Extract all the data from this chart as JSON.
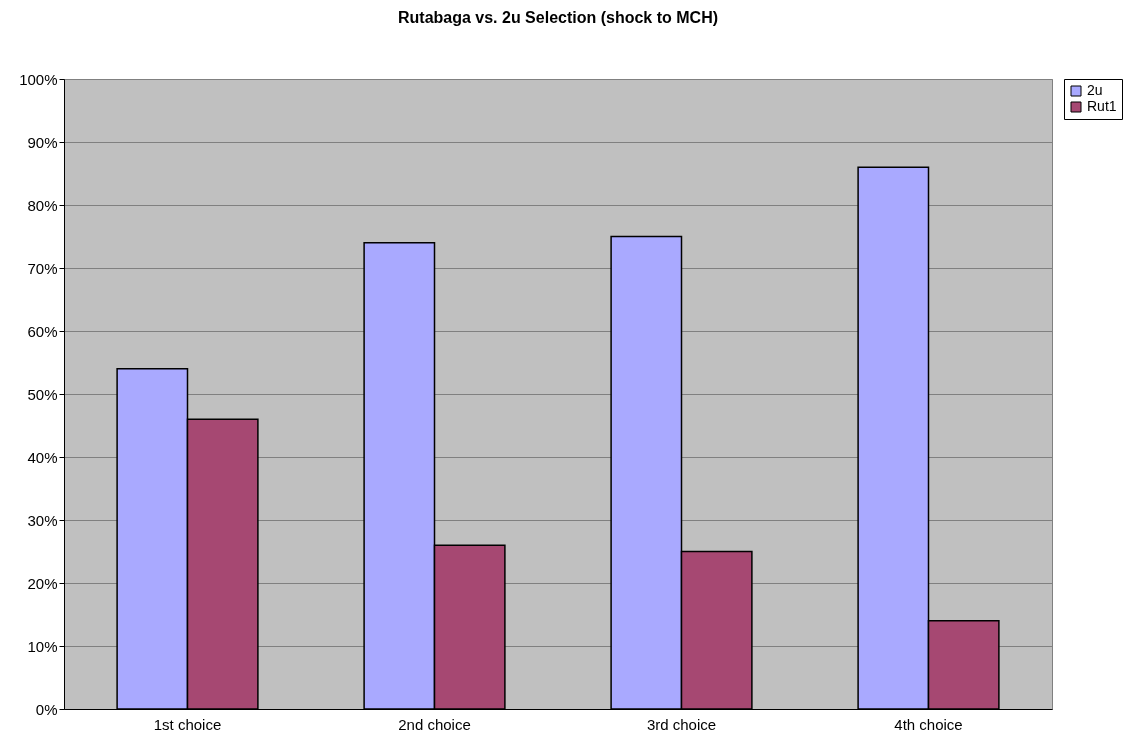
{
  "chart_data": {
    "type": "bar",
    "title": "Rutabaga vs. 2u Selection (shock to MCH)",
    "categories": [
      "1st choice",
      "2nd choice",
      "3rd choice",
      "4th choice"
    ],
    "series": [
      {
        "name": "2u",
        "color": "#a9a9ff",
        "values": [
          54,
          74,
          75,
          86
        ]
      },
      {
        "name": "Rut1",
        "color": "#a64872",
        "values": [
          46,
          26,
          25,
          14
        ]
      }
    ],
    "ylim": [
      0,
      100
    ],
    "yticks": [
      {
        "value": 0,
        "label": "0%"
      },
      {
        "value": 10,
        "label": "10%"
      },
      {
        "value": 20,
        "label": "20%"
      },
      {
        "value": 30,
        "label": "30%"
      },
      {
        "value": 40,
        "label": "40%"
      },
      {
        "value": 50,
        "label": "50%"
      },
      {
        "value": 60,
        "label": "60%"
      },
      {
        "value": 70,
        "label": "70%"
      },
      {
        "value": 80,
        "label": "80%"
      },
      {
        "value": 90,
        "label": "90%"
      },
      {
        "value": 100,
        "label": "100%"
      }
    ],
    "grid": "y",
    "legend": "right"
  }
}
